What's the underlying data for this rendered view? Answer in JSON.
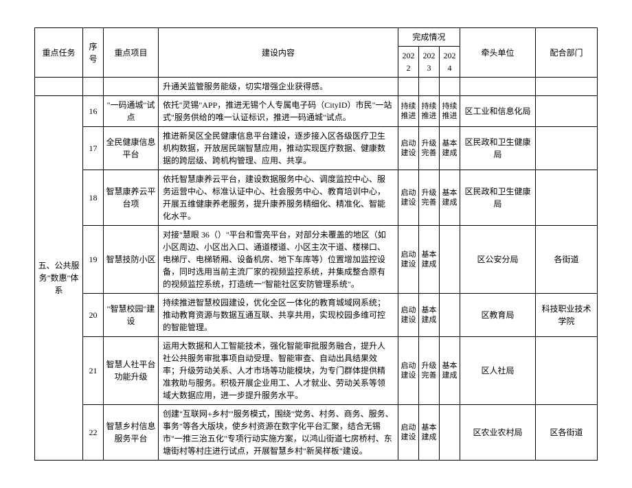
{
  "header": {
    "task": "重点任务",
    "num": "序号",
    "project": "重点项目",
    "content": "建设内容",
    "progress": "完成情况",
    "y2022": "2022",
    "y2023": "2023",
    "y2024": "2024",
    "lead": "牵头单位",
    "coop": "配合部门"
  },
  "orphan": {
    "content": "升通关监管服务能级，切实增强企业获得感。"
  },
  "taskGroup": "五、公共服务\"数惠\"体系",
  "rows": [
    {
      "num": "16",
      "project": "\"一码通城\"试点",
      "content": "依托''灵锡\"APP，推进无锡个人专属电子码（CityID）市民\"一站式\"服务供给的唯一认证标识，推进一码通城\"试点。",
      "y22": "持续推进",
      "y23": "持续推进",
      "y24": "持续推进",
      "lead": "区工业和信息化局",
      "coop": ""
    },
    {
      "num": "17",
      "project": "全民健康信息平台",
      "content": "推进新吴区全民健康信息平台建设，逐步接入区各级医疗卫生机构数据，开放居民端智慧应用，推动实现医疗数据、健康数据的跨层级、跨机构管理、应用、共享。",
      "y22": "启动建设",
      "y23": "升级完善",
      "y24": "基本建成",
      "lead": "区民政和卫生健康局",
      "coop": ""
    },
    {
      "num": "18",
      "project": "智慧康养云平台项",
      "content": "依托智慧康养云平台，建设数据服务中心、调度监控中心、服务运营中心、标准认证中心、社会服务中心、教育培训中心，开展五维健康养老服务，提升康养服务精细化、精准化、智能化水平。",
      "y22": "启动建设",
      "y23": "升级完善",
      "y24": "基本建成",
      "lead": "区民政和卫生健康局",
      "coop": ""
    },
    {
      "num": "19",
      "project": "智慧技防小区",
      "content": "对接\"慧眼 36（）\"平台和雪亮平台，对部分未覆盖的地区（如小区周边、小区出入口、通道楼道、小区主次干道、楼梯口、电梯厅、电梯轿厢、设备机房、地下车库等）位置增加监控设备，同时选用当前主流厂家的视频监控系统，并集成整合原有的视频监控系统，打造统一\"智能社区安防管理系统\"。",
      "y22": "启动建设",
      "y23": "基本建成",
      "y24": "",
      "lead": "区公安分局",
      "coop": "各街道"
    },
    {
      "num": "20",
      "project": "\"智慧校园\"建设",
      "content": "持续推进智慧校园建设，优化全区一体化的教育城域网系统；推动教育资源与数据互通互联、共享共用，实现校园多维可控的智能管理。",
      "y22": "启动建设",
      "y23": "基本建成",
      "y24": "",
      "lead": "区教育局",
      "coop": "科技职业技术学院"
    },
    {
      "num": "21",
      "project": "智慧人社平台功能升级",
      "content": "运用大数据和人工智能技术，强化智能审批服务融合，提升人社公共服务审批事项自动受理、智能审查、自动出具结果效率；升级劳动关系、人才市场等功能模块，为专门群体提供精准救助与服务。积极开展企业用工、人才就业、劳动关系等领域大数据应用，进一步提升服务水平。",
      "y22": "启动建设",
      "y23": "升级完善",
      "y24": "基本建成",
      "lead": "区人社局",
      "coop": ""
    },
    {
      "num": "22",
      "project": "智慧乡村信息服务平台",
      "content": "创建\"互联网+乡村'\"服务模式，围绕\"党务、村务、商务、服务、事务\"等各大版块，使乡村资源在数字化平台汇聚，结合无锡市\"一推三治五化\"专项行动实施方案，以鸿山街道七房桥村、东塘街村等村庄进行试点，开展智慧乡村\"新吴样板\"建设。",
      "y22": "启动建设",
      "y23": "基本建成",
      "y24": "",
      "lead": "区农业农村局",
      "coop": "区各街道"
    }
  ]
}
